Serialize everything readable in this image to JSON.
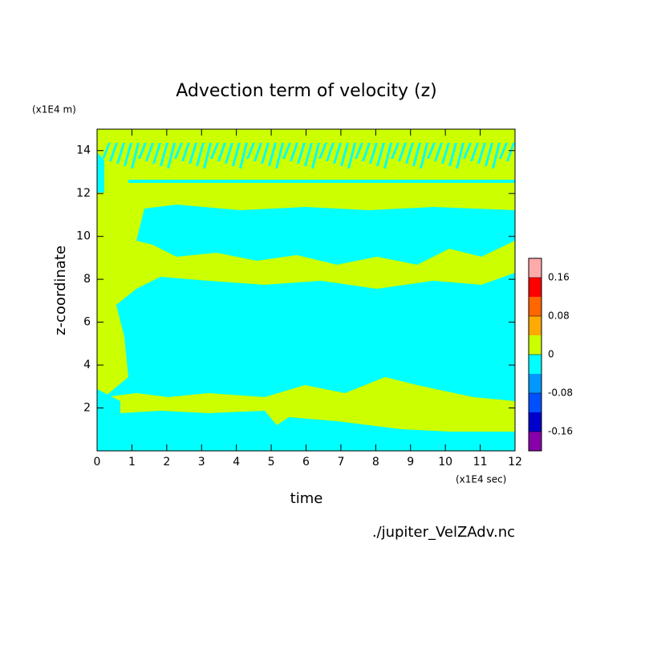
{
  "chart_data": {
    "type": "contour",
    "title": "Advection term of velocity (z)",
    "x_label": "time",
    "y_label": "z-coordinate",
    "x_unit": "(x1E4 sec)",
    "y_unit": "(x1E4 m)",
    "source": "./jupiter_VelZAdv.nc",
    "xlim": [
      0,
      12
    ],
    "xticks": [
      0,
      1,
      2,
      3,
      4,
      5,
      6,
      7,
      8,
      9,
      10,
      11,
      12
    ],
    "ylim": [
      0,
      15
    ],
    "yticks": [
      2,
      4,
      6,
      8,
      10,
      12,
      14
    ],
    "colorbar": {
      "levels": [
        -0.2,
        -0.16,
        -0.12,
        -0.08,
        -0.04,
        0,
        0.04,
        0.08,
        0.12,
        0.16,
        0.2
      ],
      "colors": [
        "#8800aa",
        "#0000cc",
        "#0050ff",
        "#0099ff",
        "#00ffff",
        "#ccff00",
        "#ffaa00",
        "#ff6600",
        "#ff0000",
        "#ffaaaa"
      ],
      "ticks": [
        -0.16,
        -0.08,
        0,
        0.08,
        0.16
      ],
      "lim": [
        -0.2,
        0.2
      ]
    }
  }
}
